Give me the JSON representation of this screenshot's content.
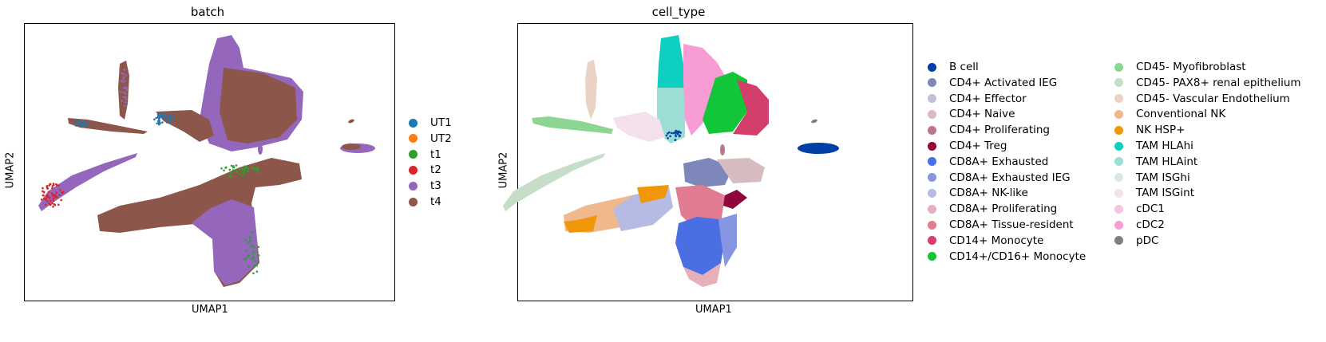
{
  "chart_data": [
    {
      "type": "scatter",
      "title": "batch",
      "xlabel": "UMAP1",
      "ylabel": "UMAP2",
      "grid": false,
      "legend_position": "right",
      "series": [
        {
          "name": "UT1",
          "color": "#1f77b4"
        },
        {
          "name": "UT2",
          "color": "#ff7f0e"
        },
        {
          "name": "t1",
          "color": "#2ca02c"
        },
        {
          "name": "t2",
          "color": "#d62728"
        },
        {
          "name": "t3",
          "color": "#9467bd"
        },
        {
          "name": "t4",
          "color": "#8c564b"
        }
      ]
    },
    {
      "type": "scatter",
      "title": "cell_type",
      "xlabel": "UMAP1",
      "ylabel": "UMAP2",
      "grid": false,
      "legend_position": "right",
      "series": [
        {
          "name": "B cell",
          "color": "#023fa5"
        },
        {
          "name": "CD4+ Activated IEG",
          "color": "#7d87b9"
        },
        {
          "name": "CD4+ Effector",
          "color": "#bec1d4"
        },
        {
          "name": "CD4+ Naive",
          "color": "#d6bcc0"
        },
        {
          "name": "CD4+ Proliferating",
          "color": "#bb7784"
        },
        {
          "name": "CD4+ Treg",
          "color": "#8e063b"
        },
        {
          "name": "CD8A+ Exhausted",
          "color": "#4a6fe3"
        },
        {
          "name": "CD8A+ Exhausted IEG",
          "color": "#8595e1"
        },
        {
          "name": "CD8A+ NK-like",
          "color": "#b5bbe3"
        },
        {
          "name": "CD8A+ Proliferating",
          "color": "#e6afb9"
        },
        {
          "name": "CD8A+ Tissue-resident",
          "color": "#e07b91"
        },
        {
          "name": "CD14+ Monocyte",
          "color": "#d33f6a"
        },
        {
          "name": "CD14+/CD16+ Monocyte",
          "color": "#11c638"
        },
        {
          "name": "CD45- Myofibroblast",
          "color": "#8dd593"
        },
        {
          "name": "CD45- PAX8+ renal epithelium",
          "color": "#c6dec7"
        },
        {
          "name": "CD45- Vascular Endothelium",
          "color": "#ead3c6"
        },
        {
          "name": "Conventional NK",
          "color": "#f0b98d"
        },
        {
          "name": "NK HSP+",
          "color": "#ef9708"
        },
        {
          "name": "TAM HLAhi",
          "color": "#0fcfc0"
        },
        {
          "name": "TAM HLAint",
          "color": "#9cded6"
        },
        {
          "name": "TAM ISGhi",
          "color": "#d5eae7"
        },
        {
          "name": "TAM ISGint",
          "color": "#f3e1eb"
        },
        {
          "name": "cDC1",
          "color": "#f6c4e1"
        },
        {
          "name": "cDC2",
          "color": "#f79cd4"
        },
        {
          "name": "pDC",
          "color": "#7f7f7f"
        }
      ]
    }
  ]
}
